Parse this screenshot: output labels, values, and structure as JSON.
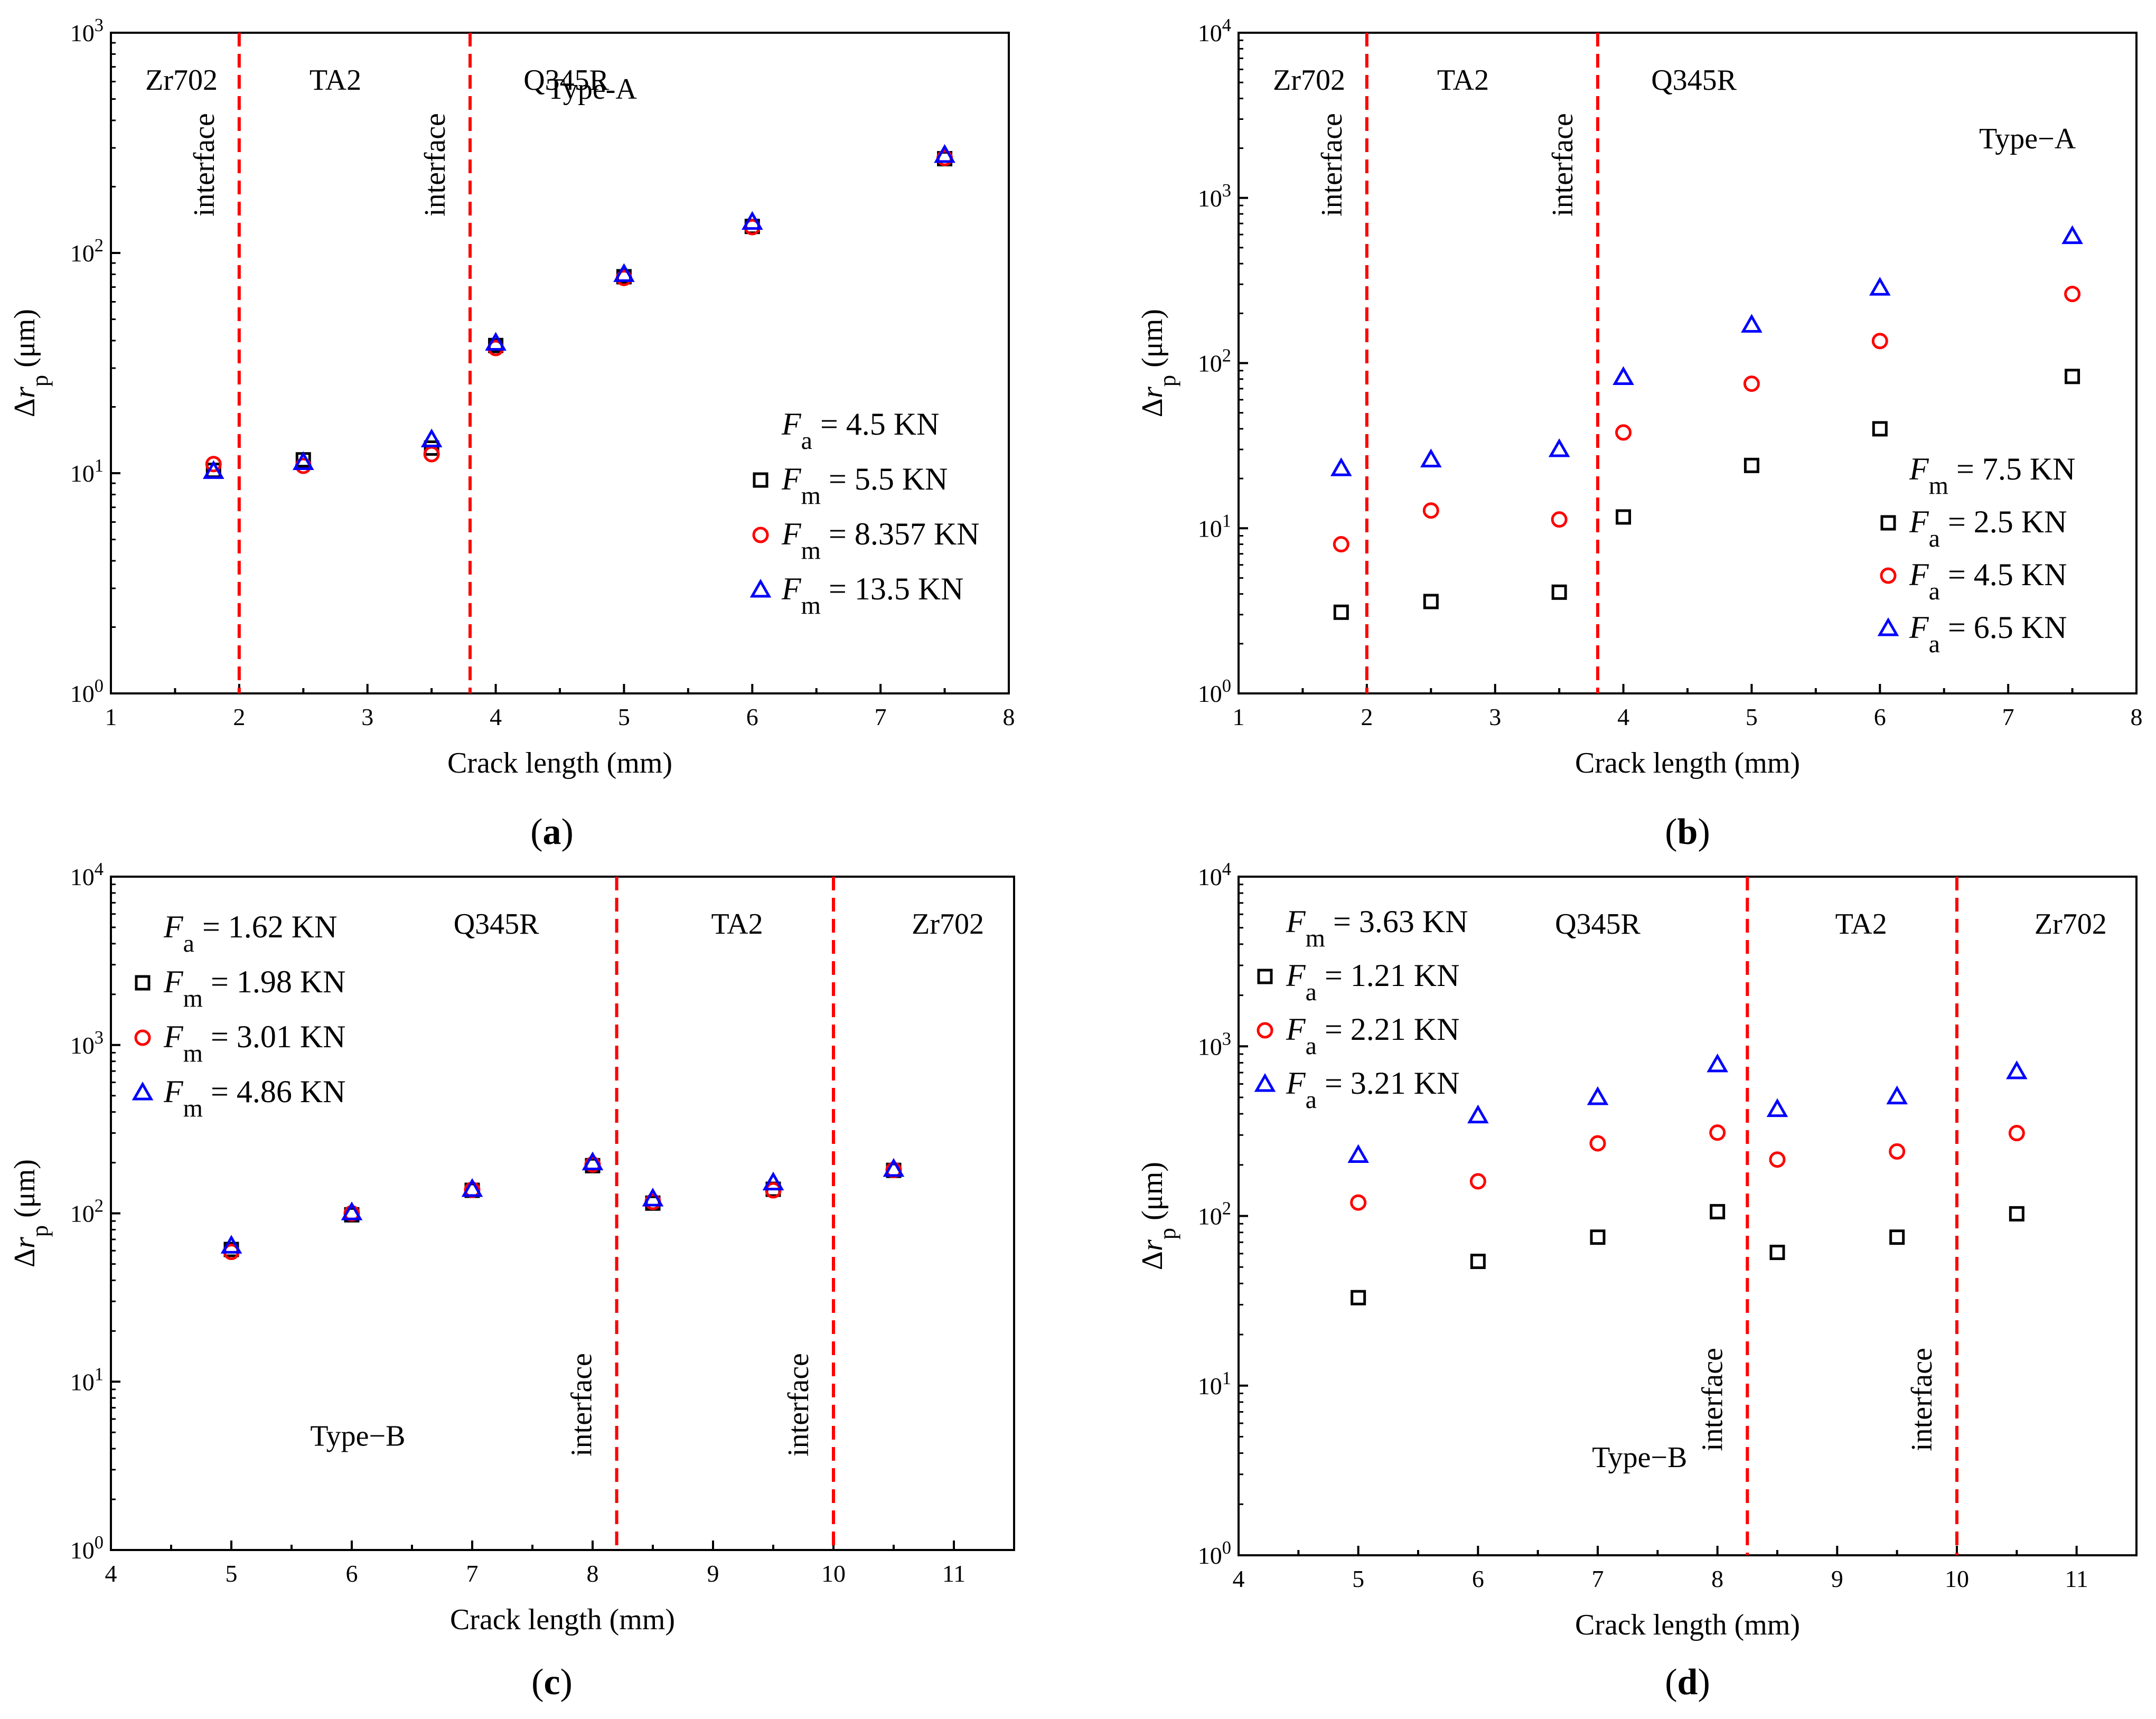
{
  "chart_data": [
    {
      "id": "a",
      "type": "scatter",
      "panel_label": "a",
      "xlabel": "Crack length (mm)",
      "ylabel_delta": "Δ",
      "ylabel_var": "r",
      "ylabel_sub": "p",
      "ylabel_unit": " (μm)",
      "xlim": [
        1,
        8
      ],
      "xticks": [
        1,
        2,
        3,
        4,
        5,
        6,
        7,
        8
      ],
      "yscale": "log",
      "ylim_exp": [
        0,
        3
      ],
      "yticks_exp": [
        0,
        1,
        2,
        3
      ],
      "interfaces": [
        2.0,
        3.8
      ],
      "regions": [
        {
          "label": "Zr702",
          "x": 1.55
        },
        {
          "label": "TA2",
          "x": 2.75
        },
        {
          "label": "Q345R",
          "x": 4.55
        }
      ],
      "interface_label": "interface",
      "interface_label_pos": "top",
      "type_label": "Type-A",
      "type_label_pos": [
        4.75,
        2.7
      ],
      "legend_header": {
        "var": "F",
        "sub": "a",
        "text": " = 4.5 KN"
      },
      "legend_pos": "bottom-right",
      "series": [
        {
          "var": "F",
          "sub": "m",
          "text": " = 5.5 KN",
          "marker": "square",
          "color": "#000000",
          "x": [
            1.8,
            2.5,
            3.5,
            4.0,
            5.0,
            6.0,
            7.5
          ],
          "y": [
            10.3,
            11.5,
            13.0,
            38,
            78,
            132,
            268
          ]
        },
        {
          "var": "F",
          "sub": "m",
          "text": " = 8.357 KN",
          "marker": "circle",
          "color": "#ff0000",
          "x": [
            1.8,
            2.5,
            3.5,
            4.0,
            5.0,
            6.0,
            7.5
          ],
          "y": [
            11.0,
            10.8,
            12.2,
            37,
            77,
            131,
            270
          ]
        },
        {
          "var": "F",
          "sub": "m",
          "text": " = 13.5 KN",
          "marker": "triangle",
          "color": "#0000ff",
          "x": [
            1.8,
            2.5,
            3.5,
            4.0,
            5.0,
            6.0,
            7.5
          ],
          "y": [
            10.2,
            11.2,
            14.2,
            39,
            80,
            138,
            278
          ]
        }
      ]
    },
    {
      "id": "b",
      "type": "scatter",
      "panel_label": "b",
      "xlabel": "Crack length (mm)",
      "ylabel_delta": "Δ",
      "ylabel_var": "r",
      "ylabel_sub": "p",
      "ylabel_unit": " (μm)",
      "xlim": [
        1,
        8
      ],
      "xticks": [
        1,
        2,
        3,
        4,
        5,
        6,
        7,
        8
      ],
      "yscale": "log",
      "ylim_exp": [
        0,
        4
      ],
      "yticks_exp": [
        0,
        1,
        2,
        3,
        4
      ],
      "interfaces": [
        2.0,
        3.8
      ],
      "regions": [
        {
          "label": "Zr702",
          "x": 1.55
        },
        {
          "label": "TA2",
          "x": 2.75
        },
        {
          "label": "Q345R",
          "x": 4.55
        }
      ],
      "interface_label": "interface",
      "interface_label_pos": "top",
      "type_label": "Type−A",
      "type_label_pos": [
        7.15,
        3.3
      ],
      "legend_header": {
        "var": "F",
        "sub": "m",
        "text": " = 7.5 KN"
      },
      "legend_pos": "bottom-right",
      "series": [
        {
          "var": "F",
          "sub": "a",
          "text": " = 2.5 KN",
          "marker": "square",
          "color": "#000000",
          "x": [
            1.8,
            2.5,
            3.5,
            4.0,
            5.0,
            6.0,
            7.5
          ],
          "y": [
            3.1,
            3.6,
            4.1,
            11.7,
            24,
            40,
            83
          ]
        },
        {
          "var": "F",
          "sub": "a",
          "text": " = 4.5 KN",
          "marker": "circle",
          "color": "#ff0000",
          "x": [
            1.8,
            2.5,
            3.5,
            4.0,
            5.0,
            6.0,
            7.5
          ],
          "y": [
            8.0,
            12.8,
            11.3,
            38,
            75,
            136,
            262
          ]
        },
        {
          "var": "F",
          "sub": "a",
          "text": " = 6.5 KN",
          "marker": "triangle",
          "color": "#0000ff",
          "x": [
            1.8,
            2.5,
            3.5,
            4.0,
            5.0,
            6.0,
            7.5
          ],
          "y": [
            23,
            26,
            30,
            82,
            170,
            285,
            585
          ]
        }
      ]
    },
    {
      "id": "c",
      "type": "scatter",
      "panel_label": "c",
      "xlabel": "Crack length (mm)",
      "ylabel_delta": "Δ",
      "ylabel_var": "r",
      "ylabel_sub": "p",
      "ylabel_unit": " (μm)",
      "xlim": [
        4,
        11.5
      ],
      "xticks": [
        4,
        5,
        6,
        7,
        8,
        9,
        10,
        11
      ],
      "yscale": "log",
      "ylim_exp": [
        0,
        4
      ],
      "yticks_exp": [
        0,
        1,
        2,
        3,
        4
      ],
      "interfaces": [
        8.2,
        10.0
      ],
      "regions": [
        {
          "label": "Q345R",
          "x": 7.2
        },
        {
          "label": "TA2",
          "x": 9.2
        },
        {
          "label": "Zr702",
          "x": 10.95
        }
      ],
      "interface_label": "interface",
      "interface_label_pos": "bottom",
      "type_label": "Type−B",
      "type_label_pos": [
        6.05,
        0.62
      ],
      "legend_header": {
        "var": "F",
        "sub": "a",
        "text": " = 1.62 KN"
      },
      "legend_pos": "top-left",
      "series": [
        {
          "var": "F",
          "sub": "m",
          "text": " = 1.98 KN",
          "marker": "square",
          "color": "#000000",
          "x": [
            5.0,
            6.0,
            7.0,
            8.0,
            8.5,
            9.5,
            10.5
          ],
          "y": [
            61,
            98,
            137,
            192,
            115,
            139,
            180
          ]
        },
        {
          "var": "F",
          "sub": "m",
          "text": " = 3.01 KN",
          "marker": "circle",
          "color": "#ff0000",
          "x": [
            5.0,
            6.0,
            7.0,
            8.0,
            8.5,
            9.5,
            10.5
          ],
          "y": [
            59,
            100,
            138,
            195,
            117,
            137,
            181
          ]
        },
        {
          "var": "F",
          "sub": "m",
          "text": " = 4.86 KN",
          "marker": "triangle",
          "color": "#0000ff",
          "x": [
            5.0,
            6.0,
            7.0,
            8.0,
            8.5,
            9.5,
            10.5
          ],
          "y": [
            64,
            101,
            139,
            200,
            122,
            152,
            183
          ]
        }
      ]
    },
    {
      "id": "d",
      "type": "scatter",
      "panel_label": "d",
      "xlabel": "Crack length (mm)",
      "ylabel_delta": "Δ",
      "ylabel_var": "r",
      "ylabel_sub": "p",
      "ylabel_unit": " (μm)",
      "xlim": [
        4,
        11.5
      ],
      "xticks": [
        4,
        5,
        6,
        7,
        8,
        9,
        10,
        11
      ],
      "yscale": "log",
      "ylim_exp": [
        0,
        4
      ],
      "yticks_exp": [
        0,
        1,
        2,
        3,
        4
      ],
      "interfaces": [
        8.25,
        10.0
      ],
      "regions": [
        {
          "label": "Q345R",
          "x": 7.0
        },
        {
          "label": "TA2",
          "x": 9.2
        },
        {
          "label": "Zr702",
          "x": 10.95
        }
      ],
      "interface_label": "interface",
      "interface_label_pos": "bottom",
      "type_label": "Type−B",
      "type_label_pos": [
        7.35,
        0.52
      ],
      "legend_header": {
        "var": "F",
        "sub": "m",
        "text": " = 3.63 KN"
      },
      "legend_pos": "top-left",
      "series": [
        {
          "var": "F",
          "sub": "a",
          "text": " = 1.21 KN",
          "marker": "square",
          "color": "#000000",
          "x": [
            5.0,
            6.0,
            7.0,
            8.0,
            8.5,
            9.5,
            10.5
          ],
          "y": [
            33,
            54,
            75,
            106,
            61,
            75,
            103
          ]
        },
        {
          "var": "F",
          "sub": "a",
          "text": " = 2.21 KN",
          "marker": "circle",
          "color": "#ff0000",
          "x": [
            5.0,
            6.0,
            7.0,
            8.0,
            8.5,
            9.5,
            10.5
          ],
          "y": [
            120,
            160,
            268,
            310,
            215,
            240,
            308
          ]
        },
        {
          "var": "F",
          "sub": "a",
          "text": " = 3.21 KN",
          "marker": "triangle",
          "color": "#0000ff",
          "x": [
            5.0,
            6.0,
            7.0,
            8.0,
            8.5,
            9.5,
            10.5
          ],
          "y": [
            228,
            390,
            500,
            780,
            425,
            505,
            710
          ]
        }
      ]
    }
  ]
}
